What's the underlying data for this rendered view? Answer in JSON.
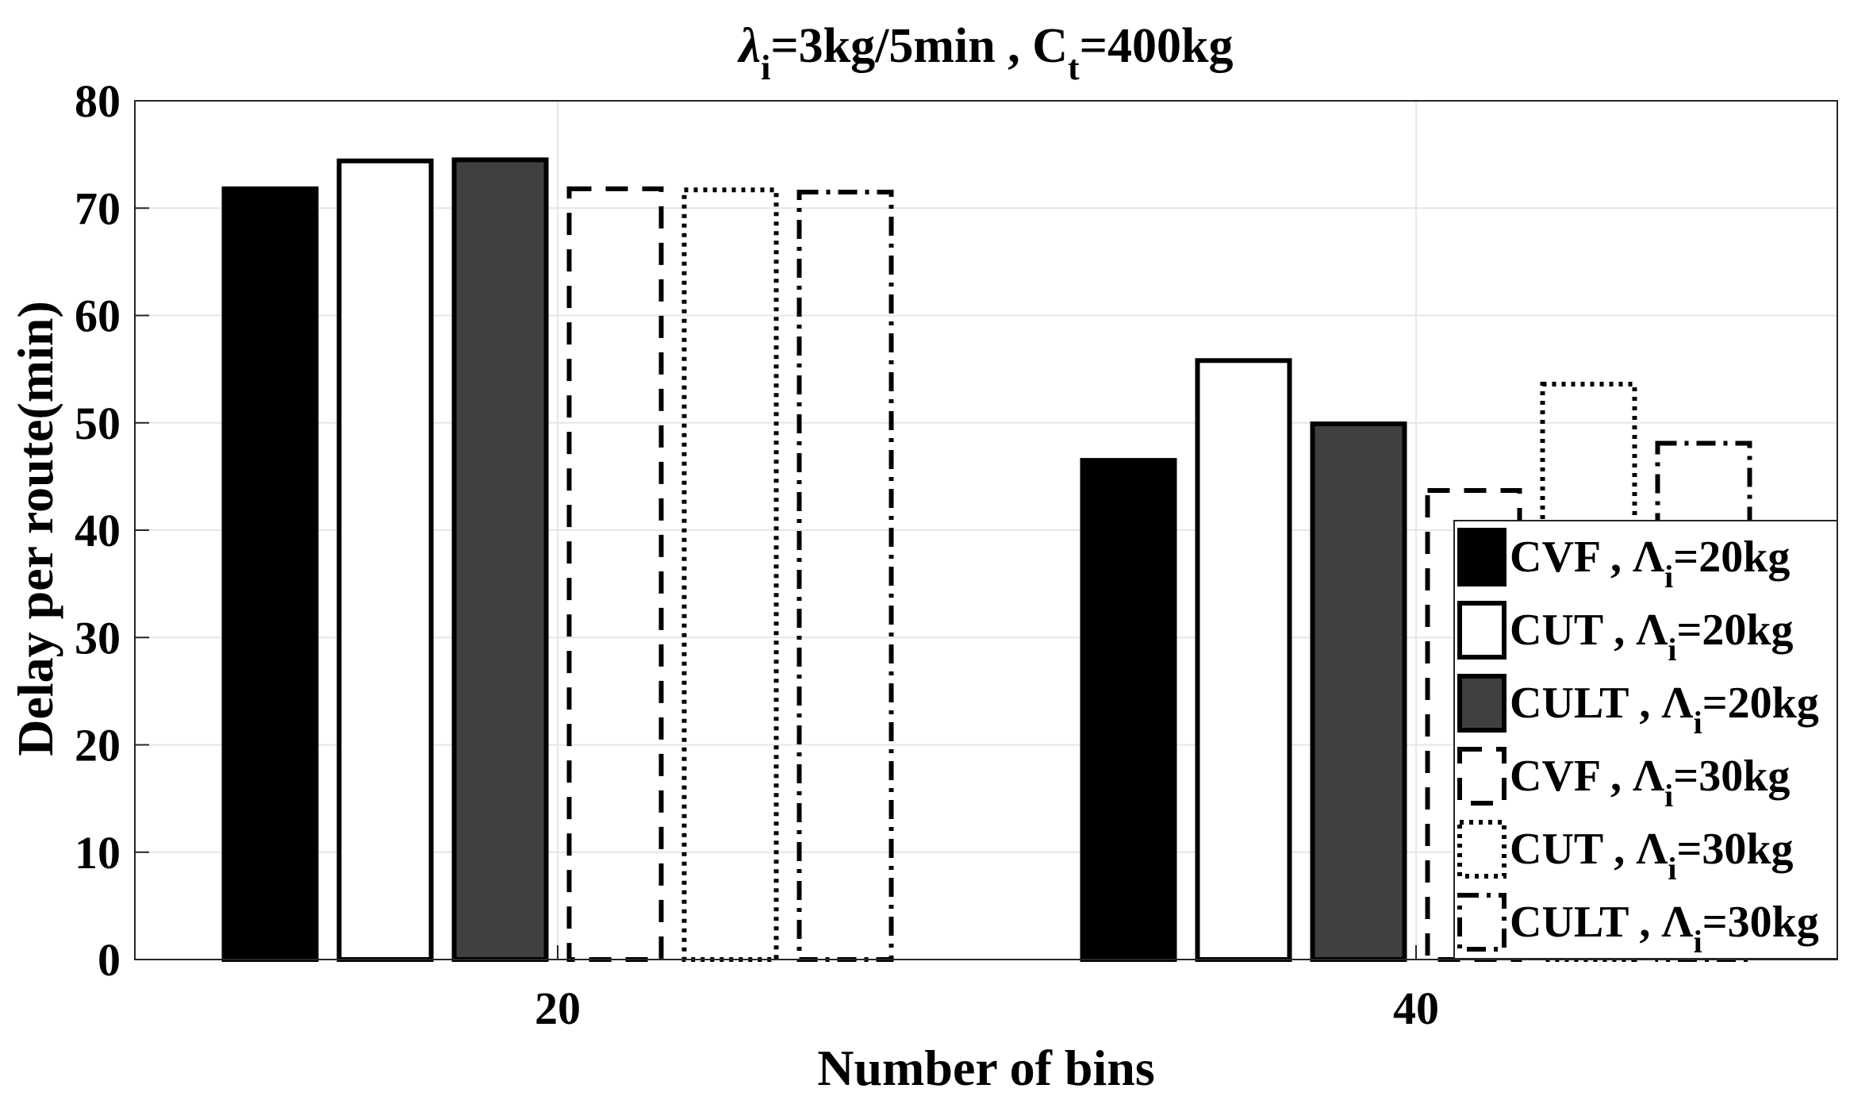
{
  "chart_data": {
    "type": "bar",
    "title": {
      "lambda_symbol": "λ",
      "lambda_sub": "i",
      "part1": "=3kg/5min , C",
      "c_sub": "t",
      "part2": "=400kg"
    },
    "xlabel": "Number of bins",
    "ylabel": "Delay per route(min)",
    "categories": [
      "20",
      "40"
    ],
    "ylim": [
      0,
      80
    ],
    "yticks": [
      "0",
      "10",
      "20",
      "30",
      "40",
      "50",
      "60",
      "70",
      "80"
    ],
    "grid": true,
    "legend_position": "bottom-right",
    "series": [
      {
        "name": "CVF , Λi=20kg",
        "label_main": "CVF , Λ",
        "label_sub": "i",
        "label_tail": "=20kg",
        "style": "solid-black",
        "values": [
          71.8,
          46.5
        ]
      },
      {
        "name": "CUT , Λi=20kg",
        "label_main": "CUT , Λ",
        "label_sub": "i",
        "label_tail": "=20kg",
        "style": "solid-white",
        "values": [
          74.4,
          55.8
        ]
      },
      {
        "name": "CULT , Λi=20kg",
        "label_main": "CULT , Λ",
        "label_sub": "i",
        "label_tail": "=20kg",
        "style": "solid-gray",
        "values": [
          74.5,
          49.9
        ]
      },
      {
        "name": "CVF , Λi=30kg",
        "label_main": "CVF , Λ",
        "label_sub": "i",
        "label_tail": "=30kg",
        "style": "dashed",
        "values": [
          71.8,
          43.7
        ]
      },
      {
        "name": "CUT , Λi=30kg",
        "label_main": "CUT , Λ",
        "label_sub": "i",
        "label_tail": "=30kg",
        "style": "dotted",
        "values": [
          71.7,
          53.6
        ]
      },
      {
        "name": "CULT , Λi=30kg",
        "label_main": "CULT , Λ",
        "label_sub": "i",
        "label_tail": "=30kg",
        "style": "dashdot",
        "values": [
          71.5,
          48.1
        ]
      }
    ],
    "colors": {
      "solid_black": "#000000",
      "solid_white": "#ffffff",
      "solid_gray": "#404040",
      "grid": "#e6e6e6",
      "axis": "#262626"
    }
  }
}
